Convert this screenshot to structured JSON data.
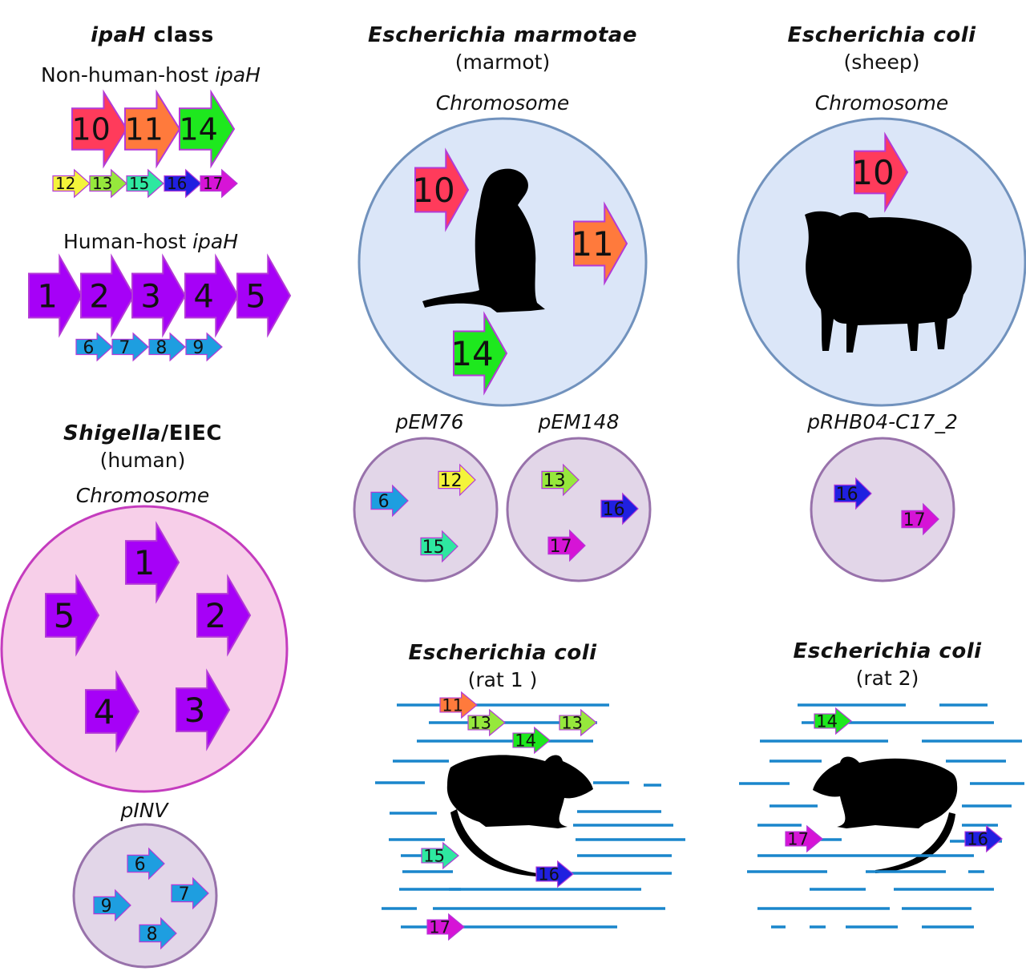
{
  "panels": {
    "class": {
      "title_italic": "ipaH",
      "title_rest": " class",
      "nonhuman_label": "Non-human-host ",
      "nonhuman_label_italic": "ipaH",
      "human_label": "Human-host ",
      "human_label_italic": "ipaH",
      "nonhuman_large": [
        "10",
        "11",
        "14"
      ],
      "nonhuman_small": [
        "12",
        "13",
        "15",
        "16",
        "17"
      ],
      "human_large": [
        "1",
        "2",
        "3",
        "4",
        "5"
      ],
      "human_small": [
        "6",
        "7",
        "8",
        "9"
      ]
    },
    "marmot": {
      "title": "Escherichia marmotae",
      "host": "(marmot)",
      "chromosome_label": "Chromosome",
      "chromosome_genes": [
        "10",
        "11",
        "14"
      ],
      "plasmids": [
        {
          "name": "pEM76",
          "genes": [
            "6",
            "12",
            "15"
          ]
        },
        {
          "name": "pEM148",
          "genes": [
            "13",
            "16",
            "17"
          ]
        }
      ]
    },
    "sheep": {
      "title": "Escherichia coli",
      "host": "(sheep)",
      "chromosome_label": "Chromosome",
      "chromosome_genes": [
        "10"
      ],
      "plasmids": [
        {
          "name": "pRHB04-C17_2",
          "genes": [
            "16",
            "17"
          ]
        }
      ]
    },
    "shigella": {
      "title_italic": "Shigella",
      "title_rest": "/EIEC",
      "host": "(human)",
      "chromosome_label": "Chromosome",
      "chromosome_genes": [
        "1",
        "2",
        "3",
        "4",
        "5"
      ],
      "plasmids": [
        {
          "name": "pINV",
          "genes": [
            "6",
            "7",
            "8",
            "9"
          ]
        }
      ]
    },
    "rat1": {
      "title": "Escherichia coli",
      "host": "(rat 1 )",
      "genes": [
        "11",
        "13",
        "14",
        "13",
        "15",
        "16",
        "17"
      ]
    },
    "rat2": {
      "title": "Escherichia coli",
      "host": "(rat 2)",
      "genes": [
        "14",
        "17",
        "16"
      ]
    }
  },
  "colors": {
    "1": "#a601f7",
    "2": "#a601f7",
    "3": "#a601f7",
    "4": "#a601f7",
    "5": "#a601f7",
    "6": "#1e9ee0",
    "7": "#1e9ee0",
    "8": "#1e9ee0",
    "9": "#1e9ee0",
    "10": "#ff3b5b",
    "11": "#ff7a3c",
    "12": "#f4f43a",
    "13": "#96e83c",
    "14": "#1ee81e",
    "15": "#2ee8a0",
    "16": "#2020e0",
    "17": "#d614d6",
    "chromosome_fill": "#dbe6f8",
    "chromosome_stroke": "#7192bd",
    "shigella_fill": "#f7cfe9",
    "shigella_stroke": "#c43cbe",
    "plasmid_fill": "#e2d6e8",
    "plasmid_stroke": "#9872ab",
    "contig": "#1a86cc",
    "gene_outline": "#b33ad6",
    "silhouette": "#000000"
  },
  "icons": [
    "marmot-silhouette",
    "sheep-silhouette",
    "rat-silhouette"
  ]
}
